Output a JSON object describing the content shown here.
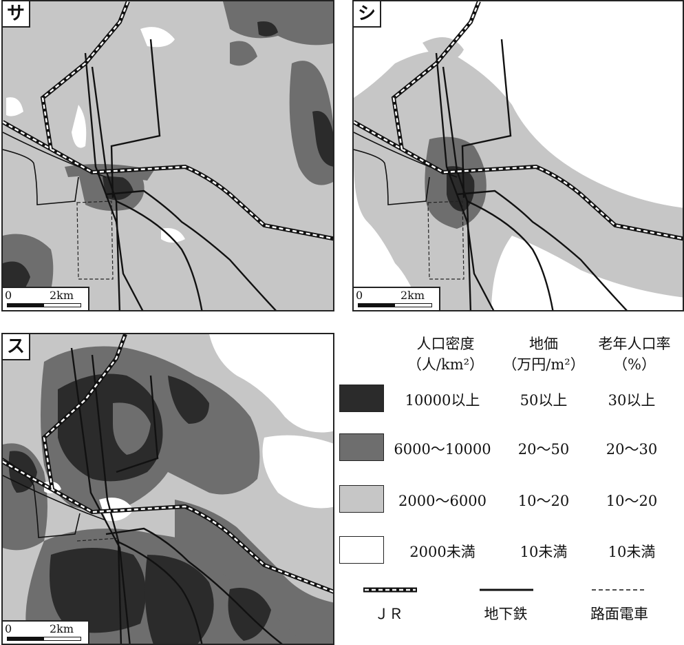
{
  "maps": [
    {
      "label": "サ",
      "scale": {
        "zero": "0",
        "distance": "2km"
      }
    },
    {
      "label": "シ",
      "scale": {
        "zero": "0",
        "distance": "2km"
      }
    },
    {
      "label": "ス",
      "scale": {
        "zero": "0",
        "distance": "2km"
      }
    }
  ],
  "legend": {
    "headers": [
      {
        "line1": "人口密度",
        "line2": "（人/km²）"
      },
      {
        "line1": "地価",
        "line2": "（万円/m²）"
      },
      {
        "line1": "老年人口率",
        "line2": "（%）"
      }
    ],
    "classes": [
      {
        "color": "#2b2b2b",
        "population_density": "10000以上",
        "land_price": "50以上",
        "elderly_rate": "30以上"
      },
      {
        "color": "#6e6e6e",
        "population_density": "6000～10000",
        "land_price": "20～50",
        "elderly_rate": "20～30"
      },
      {
        "color": "#c6c6c6",
        "population_density": "2000～6000",
        "land_price": "10～20",
        "elderly_rate": "10～20"
      },
      {
        "color": "#ffffff",
        "population_density": "2000未満",
        "land_price": "10未満",
        "elderly_rate": "10未満"
      }
    ],
    "lines": [
      {
        "label": "ＪＲ",
        "style": "jr"
      },
      {
        "label": "地下鉄",
        "style": "subway"
      },
      {
        "label": "路面電車",
        "style": "tram"
      }
    ]
  }
}
